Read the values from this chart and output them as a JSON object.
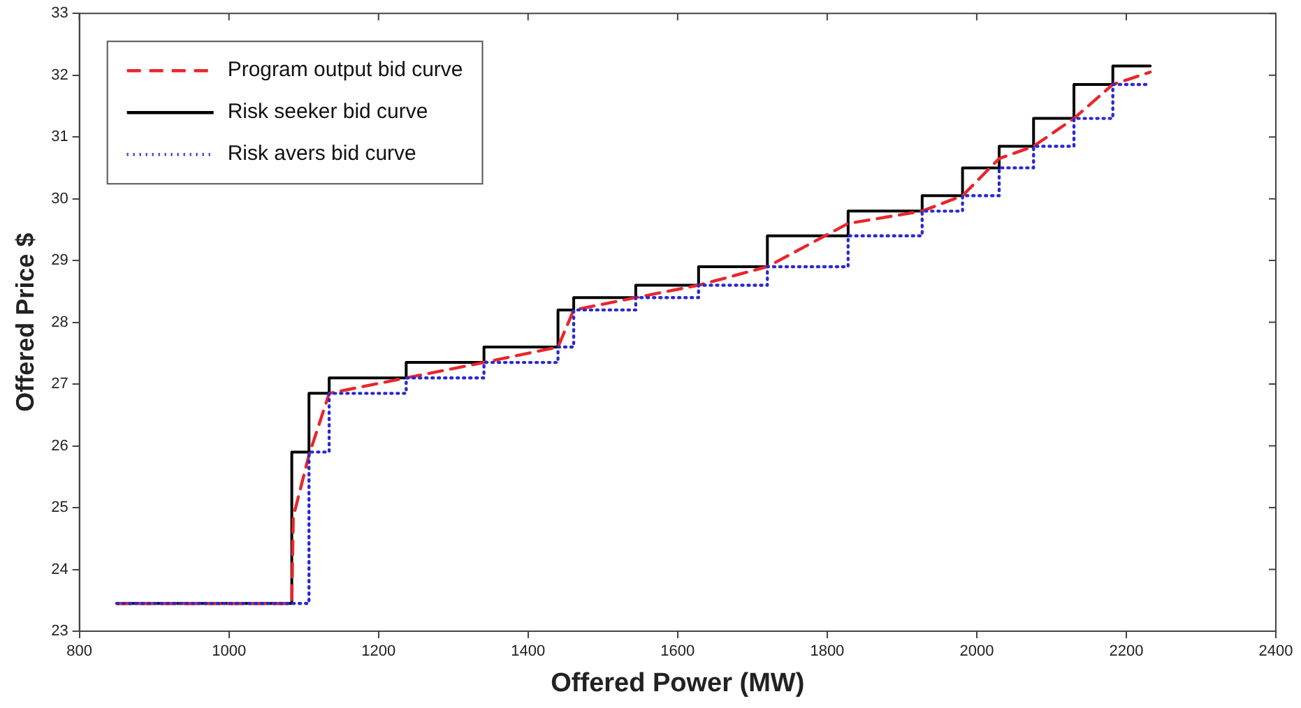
{
  "chart_data": {
    "type": "line",
    "xlabel": "Offered Power (MW)",
    "ylabel": "Offered Price $",
    "xlim": [
      800,
      2400
    ],
    "xticks": [
      800,
      1000,
      1200,
      1400,
      1600,
      1800,
      2000,
      2200,
      2400
    ],
    "ylim": [
      23,
      33
    ],
    "yticks": [
      23,
      24,
      25,
      26,
      27,
      28,
      29,
      30,
      31,
      32,
      33
    ],
    "grid": false,
    "legend": "top left",
    "marker": "none",
    "series": [
      {
        "name": "Program output bid curve",
        "type": "line",
        "line_style": "dashed",
        "color": "#e8262b",
        "x": [
          850,
          1010,
          1084,
          1086,
          1107,
          1134,
          1237,
          1341,
          1440,
          1461,
          1544,
          1628,
          1720,
          1828,
          1927,
          1981,
          2030,
          2076,
          2130,
          2182,
          2232
        ],
        "values": [
          23.45,
          23.45,
          23.45,
          24.85,
          25.85,
          26.85,
          27.1,
          27.35,
          27.6,
          28.2,
          28.4,
          28.6,
          28.9,
          29.6,
          29.8,
          30.05,
          30.65,
          30.85,
          31.3,
          31.85,
          32.05
        ]
      },
      {
        "name": "Risk seeker bid curve",
        "type": "step",
        "line_style": "solid",
        "color": "#000000",
        "x": [
          850,
          1084,
          1107,
          1134,
          1237,
          1341,
          1440,
          1461,
          1544,
          1628,
          1720,
          1828,
          1927,
          1981,
          2030,
          2076,
          2130,
          2182,
          2232
        ],
        "values": [
          23.45,
          25.9,
          26.85,
          27.1,
          27.35,
          27.6,
          28.2,
          28.4,
          28.6,
          28.9,
          29.4,
          29.8,
          30.05,
          30.5,
          30.85,
          31.3,
          31.85,
          32.15,
          32.15
        ]
      },
      {
        "name": "Risk avers bid curve",
        "type": "step",
        "line_style": "dotted",
        "color": "#2a2ad0",
        "x": [
          850,
          1107,
          1134,
          1237,
          1341,
          1440,
          1461,
          1544,
          1628,
          1720,
          1828,
          1927,
          1981,
          2030,
          2076,
          2130,
          2182,
          2232
        ],
        "values": [
          23.45,
          25.9,
          26.85,
          27.1,
          27.35,
          27.6,
          28.2,
          28.4,
          28.6,
          28.9,
          29.4,
          29.8,
          30.05,
          30.5,
          30.85,
          31.3,
          31.85,
          31.85
        ]
      }
    ]
  }
}
